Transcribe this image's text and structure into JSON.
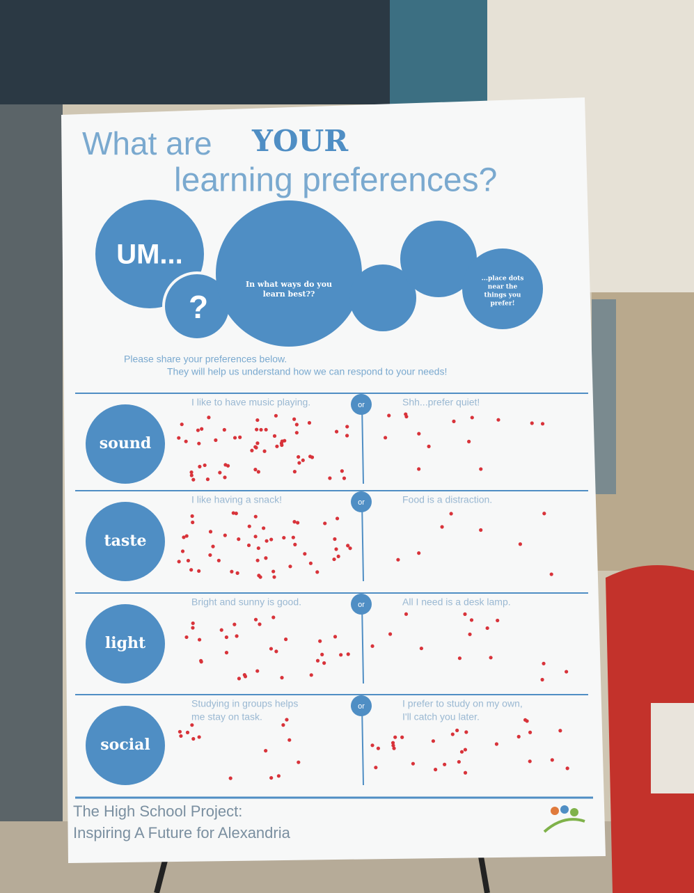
{
  "title": {
    "lead": "What are",
    "emphasis": "YOUR",
    "line2": "learning preferences?"
  },
  "bubbles": {
    "um": "UM...",
    "question": "?",
    "main": [
      "In what ways do you",
      "learn best??"
    ],
    "dots": [
      "...place dots",
      "near the",
      "things you",
      "prefer!"
    ]
  },
  "intro": [
    "Please share your preferences below.",
    "They will help us understand how we can respond to your needs!"
  ],
  "rows": [
    {
      "label": "sound",
      "left": [
        "I like to have music playing."
      ],
      "or": "or",
      "right": [
        "Shh...prefer quiet!"
      ]
    },
    {
      "label": "taste",
      "left": [
        "I like having a snack!"
      ],
      "or": "or",
      "right": [
        "Food is a distraction."
      ]
    },
    {
      "label": "light",
      "left": [
        "Bright and sunny is good."
      ],
      "or": "or",
      "right": [
        "All I need is a desk lamp."
      ]
    },
    {
      "label": "social",
      "left": [
        "Studying in groups helps",
        "me stay on task."
      ],
      "or": "or",
      "right": [
        "I prefer to study on my own,",
        "I'll catch you later."
      ]
    }
  ],
  "footer": [
    "The High School Project:",
    "Inspiring A Future for Alexandria"
  ]
}
